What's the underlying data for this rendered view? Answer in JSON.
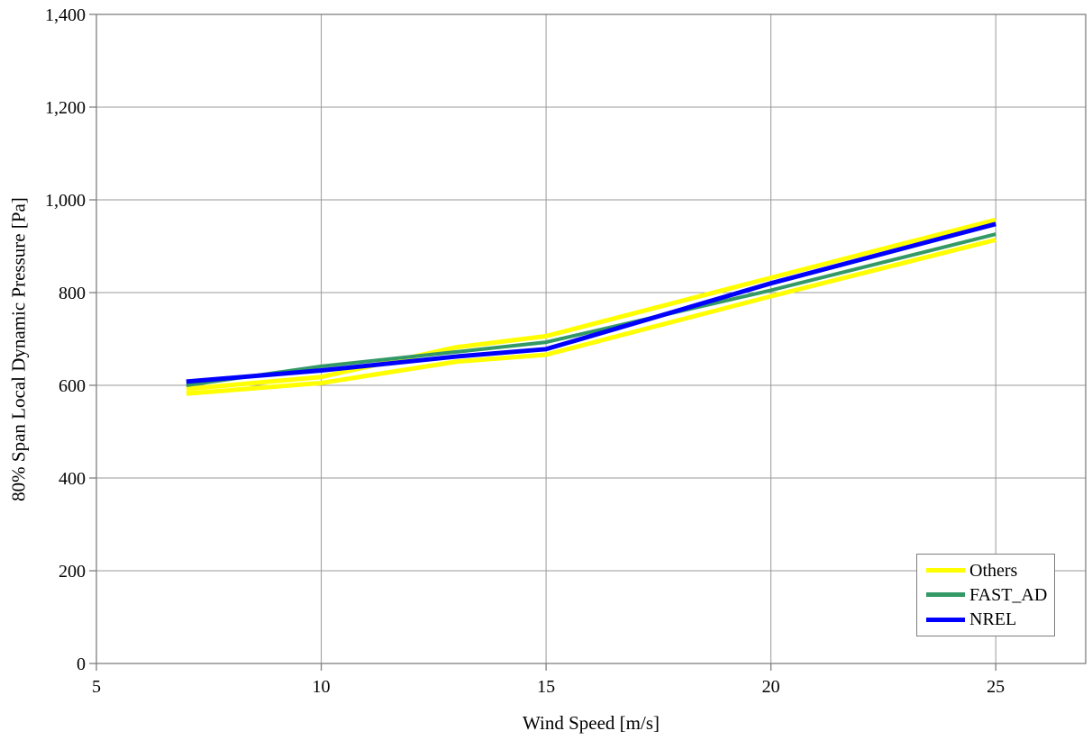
{
  "chart_data": {
    "type": "line",
    "title": "",
    "xlabel": "Wind Speed [m/s]",
    "ylabel": "80% Span Local Dynamic Pressure [Pa]",
    "xlim": [
      5,
      27
    ],
    "ylim": [
      0,
      1400
    ],
    "x_ticks": [
      5,
      10,
      15,
      20,
      25
    ],
    "y_ticks": [
      0,
      200,
      400,
      600,
      800,
      1000,
      1200,
      1400
    ],
    "grid": true,
    "grid_color": "#999999",
    "axis_color": "#7f7f7f",
    "background_color": "#ffffff",
    "legend_position": "bottom-right",
    "x": [
      7,
      10,
      13,
      15,
      20,
      25
    ],
    "series": [
      {
        "name": "Others",
        "color": "#ffff00",
        "width": 5,
        "values": [
          592,
          618,
          682,
          706,
          832,
          957
        ]
      },
      {
        "name": "Others",
        "color": "#ffff00",
        "width": 5,
        "values": [
          582,
          605,
          651,
          666,
          792,
          914
        ]
      },
      {
        "name": "FAST_AD",
        "color": "#339966",
        "width": 4,
        "values": [
          600,
          641,
          672,
          693,
          805,
          926
        ]
      },
      {
        "name": "NREL",
        "color": "#0000ff",
        "width": 5,
        "values": [
          608,
          632,
          662,
          678,
          820,
          948
        ]
      }
    ],
    "legend": [
      {
        "label": "Others",
        "color": "#ffff00"
      },
      {
        "label": "FAST_AD",
        "color": "#339966"
      },
      {
        "label": "NREL",
        "color": "#0000ff"
      }
    ]
  }
}
